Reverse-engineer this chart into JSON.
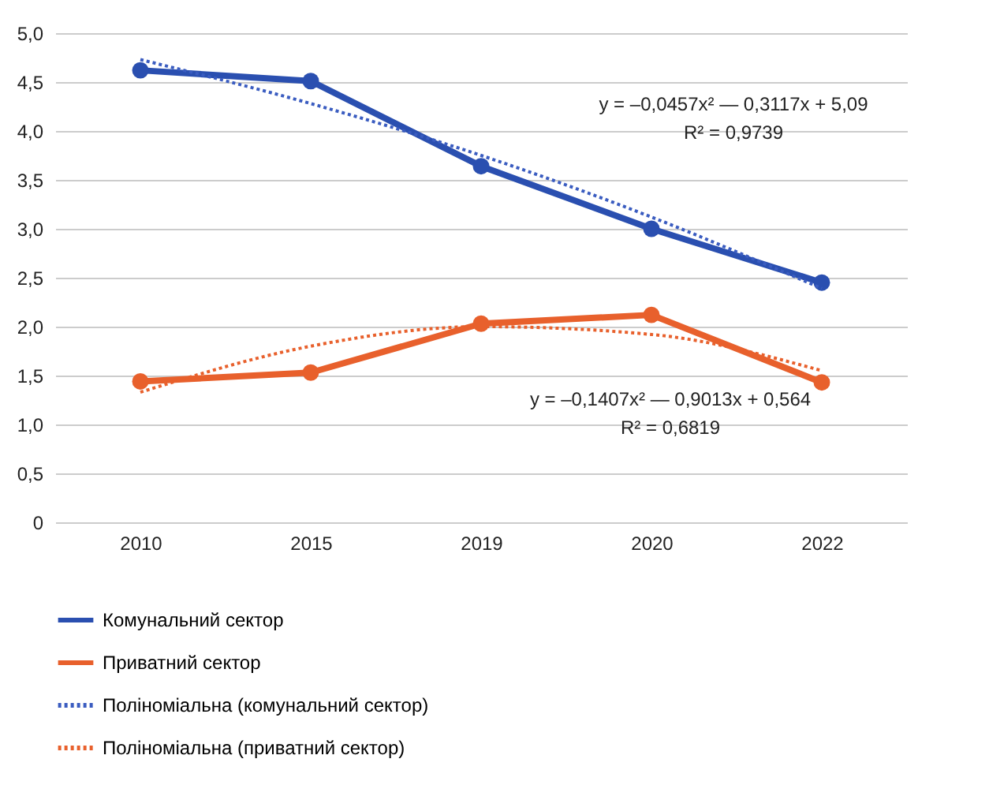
{
  "chart_data": {
    "type": "line",
    "categories": [
      "2010",
      "2015",
      "2019",
      "2020",
      "2022"
    ],
    "series": [
      {
        "name": "Комунальний сектор",
        "color": "#2a4fb0",
        "values": [
          4.62,
          4.51,
          3.64,
          3.0,
          2.45
        ],
        "marker": "circle",
        "line_style": "solid"
      },
      {
        "name": "Приватний сектор",
        "color": "#e8602c",
        "values": [
          1.44,
          1.53,
          2.03,
          2.12,
          1.43
        ],
        "marker": "circle",
        "line_style": "solid"
      },
      {
        "name": "Поліноміальна (комунальний сектор)",
        "color": "#3a5cc0",
        "values": [
          4.73,
          4.28,
          3.75,
          3.12,
          2.39
        ],
        "marker": "none",
        "line_style": "dotted"
      },
      {
        "name": "Поліноміальна (приватний сектор)",
        "color": "#e8602c",
        "values": [
          1.33,
          1.8,
          2.0,
          1.92,
          1.55
        ],
        "marker": "none",
        "line_style": "dotted"
      }
    ],
    "ylim": [
      0,
      5
    ],
    "yticks": [
      0,
      {
        "value": 0.5,
        "label": "0,5"
      },
      {
        "value": 1,
        "label": "1,0"
      },
      {
        "value": 1.5,
        "label": "1,5"
      },
      {
        "value": 2,
        "label": "2,0"
      },
      {
        "value": 2.5,
        "label": "2,5"
      },
      {
        "value": 3,
        "label": "3,0"
      },
      {
        "value": 3.5,
        "label": "3,5"
      },
      {
        "value": 4,
        "label": "4,0"
      },
      {
        "value": 4.5,
        "label": "4,5"
      },
      {
        "value": 5,
        "label": "5,0"
      }
    ],
    "grid": "y",
    "legend": "bottom",
    "annotations": [
      "y = –0,0457x² — 0,3117x + 5,09",
      "R² = 0,9739",
      "y = –0,1407x² — 0,9013x + 0,564",
      "R² = 0,6819"
    ]
  }
}
